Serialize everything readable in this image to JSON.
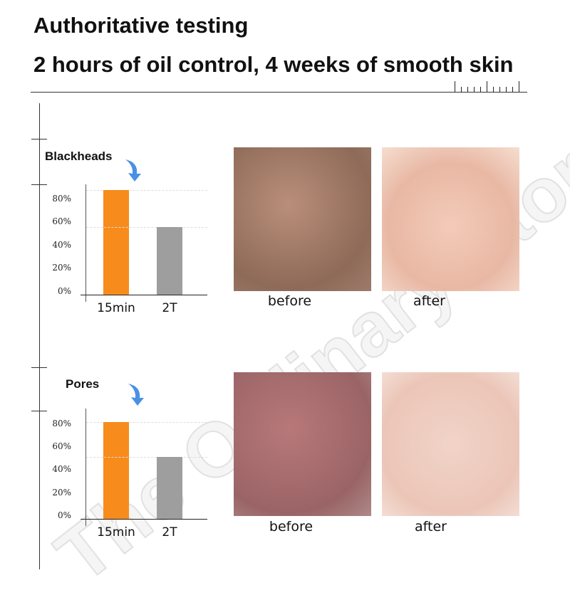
{
  "header": {
    "title": "Authoritative testing",
    "subtitle": "2 hours of oil control, 4 weeks of smooth skin"
  },
  "watermark": "The Ordinary Store",
  "colors": {
    "bar_15min": "#f78c1c",
    "bar_2T": "#9e9e9e",
    "arrow": "#2a7de1"
  },
  "chart_data": [
    {
      "type": "bar",
      "title": "Blackheads",
      "categories": [
        "15min",
        "2T"
      ],
      "values": [
        90,
        58
      ],
      "ytick_labels": [
        "0%",
        "20%",
        "40%",
        "60%",
        "80%"
      ],
      "ylim": [
        0,
        100
      ],
      "grid": true
    },
    {
      "type": "bar",
      "title": "Pores",
      "categories": [
        "15min",
        "2T"
      ],
      "values": [
        84,
        54
      ],
      "ytick_labels": [
        "0%",
        "20%",
        "40%",
        "60%",
        "80%"
      ],
      "ylim": [
        0,
        100
      ],
      "grid": true
    }
  ],
  "photos": [
    {
      "before_label": "before",
      "after_label": "after"
    },
    {
      "before_label": "before",
      "after_label": "after"
    }
  ]
}
